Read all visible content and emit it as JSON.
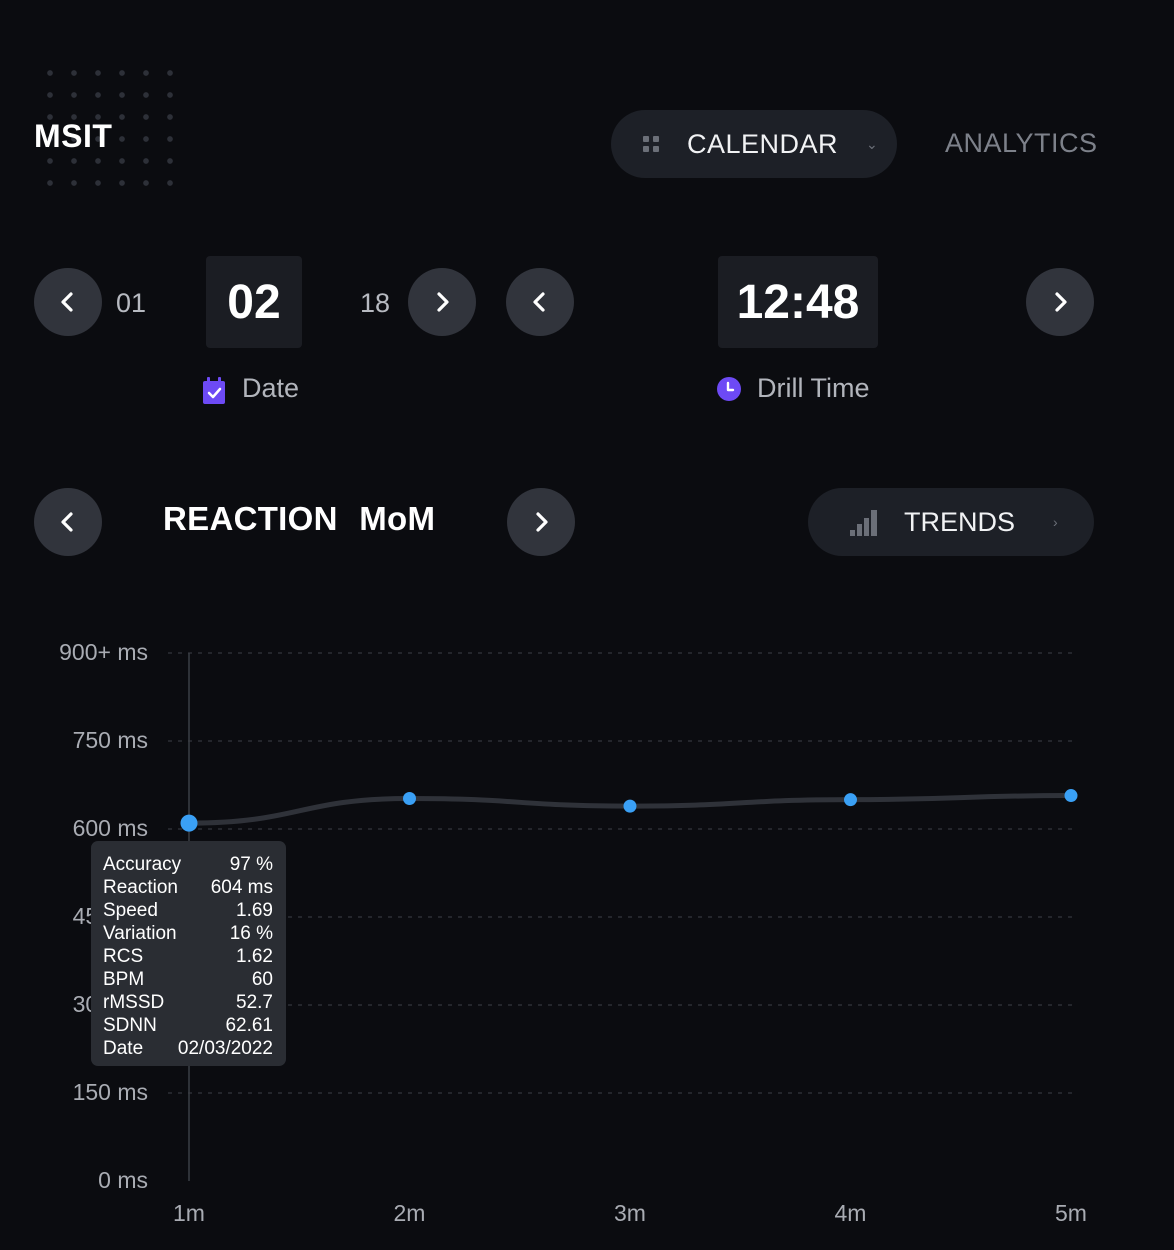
{
  "brand": "MSIT",
  "nav": {
    "calendar_label": "CALENDAR",
    "analytics_label": "ANALYTICS"
  },
  "date_picker": {
    "prev": "01",
    "current": "02",
    "next": "18",
    "label": "Date"
  },
  "time_picker": {
    "current": "12:48",
    "label": "Drill Time"
  },
  "section": {
    "title": "REACTION MoM",
    "trends_label": "TRENDS"
  },
  "colors": {
    "accent": "#3aa0f5",
    "background": "#0b0c10",
    "calendar_icon": "#6d4af5",
    "clock_icon": "#6d4af5"
  },
  "chart_data": {
    "type": "line",
    "categories": [
      "1m",
      "2m",
      "3m",
      "4m",
      "5m"
    ],
    "values": [
      610,
      652,
      639,
      650,
      657
    ],
    "y_ticks": [
      "900+ ms",
      "750 ms",
      "600 ms",
      "450 ms",
      "300 ms",
      "150 ms",
      "0 ms"
    ],
    "ylim": [
      0,
      900
    ],
    "grid": true
  },
  "tooltip": {
    "rows": [
      {
        "k": "Accuracy",
        "v": "97 %"
      },
      {
        "k": "Reaction",
        "v": "604 ms"
      },
      {
        "k": "Speed",
        "v": "1.69"
      },
      {
        "k": "Variation",
        "v": "16 %"
      },
      {
        "k": "RCS",
        "v": "1.62"
      },
      {
        "k": "BPM",
        "v": "60"
      },
      {
        "k": "rMSSD",
        "v": "52.7"
      },
      {
        "k": "SDNN",
        "v": "62.61"
      },
      {
        "k": "Date",
        "v": "02/03/2022"
      }
    ]
  }
}
